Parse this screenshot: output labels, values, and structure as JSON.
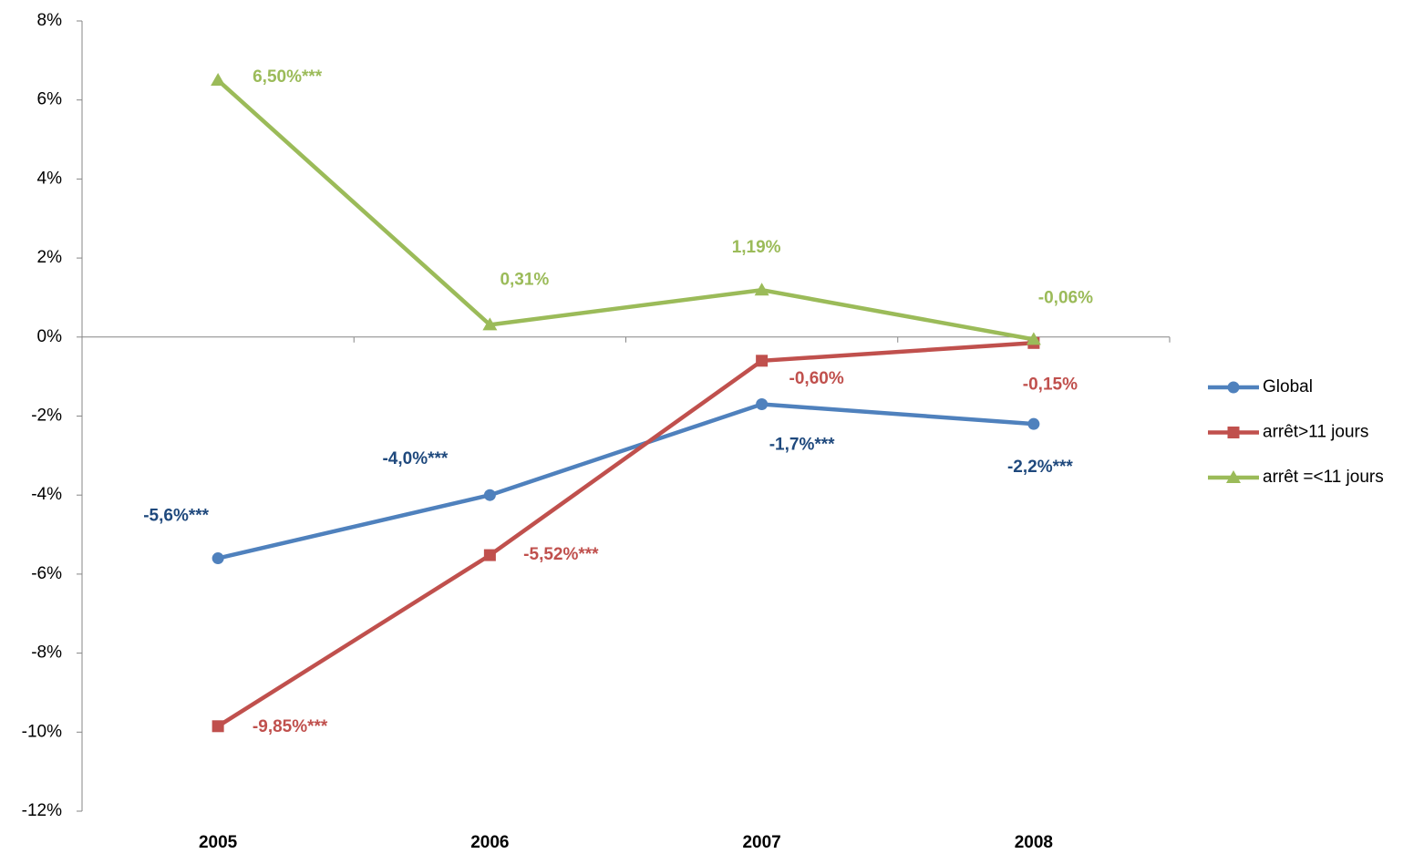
{
  "chart_data": {
    "type": "line",
    "categories": [
      "2005",
      "2006",
      "2007",
      "2008"
    ],
    "ylim": [
      -12,
      8
    ],
    "yticks": [
      {
        "value": -12,
        "label": "-12%"
      },
      {
        "value": -10,
        "label": "-10%"
      },
      {
        "value": -8,
        "label": "-8%"
      },
      {
        "value": -6,
        "label": "-6%"
      },
      {
        "value": -4,
        "label": "-4%"
      },
      {
        "value": -2,
        "label": "-2%"
      },
      {
        "value": 0,
        "label": "0%"
      },
      {
        "value": 2,
        "label": "2%"
      },
      {
        "value": 4,
        "label": "4%"
      },
      {
        "value": 6,
        "label": "6%"
      },
      {
        "value": 8,
        "label": "8%"
      }
    ],
    "legend": "right",
    "series": [
      {
        "name": "Global",
        "color": "#4f81bd",
        "label_color": "#1f497d",
        "marker": "circle",
        "values": [
          -5.6,
          -4.0,
          -1.7,
          -2.2
        ],
        "value_labels": [
          "-5,6%***",
          "-4,0%***",
          "-1,7%***",
          "-2,2%***"
        ]
      },
      {
        "name": "arrêt>11 jours",
        "color": "#c0504d",
        "label_color": "#c0504d",
        "marker": "square",
        "values": [
          -9.85,
          -5.52,
          -0.6,
          -0.15
        ],
        "value_labels": [
          "-9,85%***",
          "-5,52%***",
          "-0,60%",
          "-0,15%"
        ]
      },
      {
        "name": "arrêt =<11 jours",
        "color": "#9bbb59",
        "label_color": "#9bbb59",
        "marker": "triangle",
        "values": [
          6.5,
          0.31,
          1.19,
          -0.06
        ],
        "value_labels": [
          "6,50%***",
          "0,31%",
          "1,19%",
          "-0,06%"
        ]
      }
    ]
  }
}
